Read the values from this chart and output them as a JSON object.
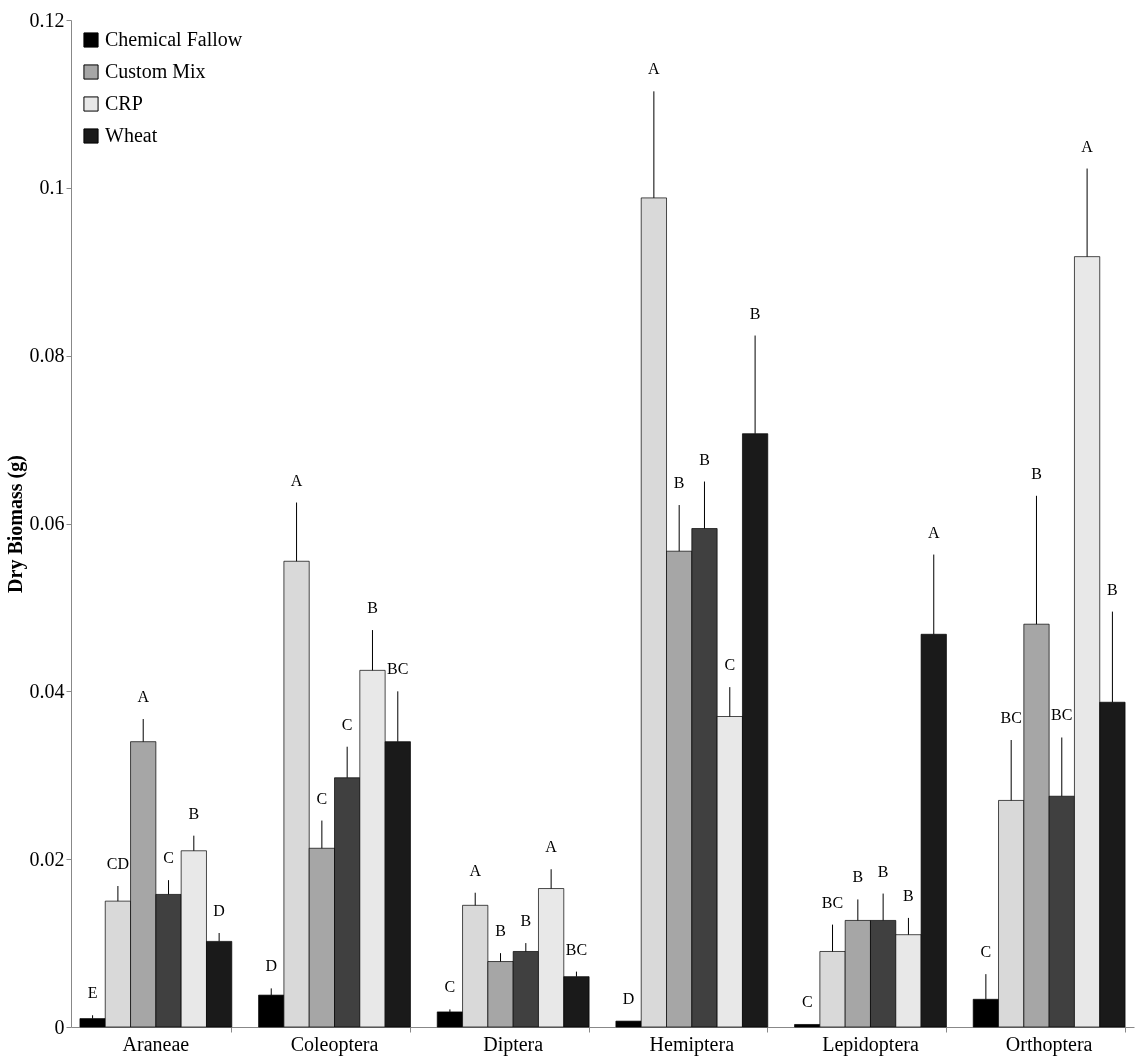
{
  "chart_data": {
    "type": "bar",
    "ylabel": "Dry Biomass (g)",
    "categories": [
      "Araneae",
      "Coleoptera",
      "Diptera",
      "Hemiptera",
      "Lepidoptera",
      "Orthoptera"
    ],
    "series": [
      {
        "name": "Chemical Fallow",
        "color": "#000000",
        "values": [
          0.001,
          0.0038,
          0.0018,
          0.0007,
          0.0003,
          0.0033
        ],
        "errors": [
          [
            0.001,
            0.0014
          ],
          [
            0.0038,
            0.0046
          ],
          [
            0.0018,
            0.0021
          ],
          null,
          null,
          [
            0.0033,
            0.0063
          ]
        ]
      },
      {
        "color": "#d9d9d9",
        "values": [
          0.015,
          0.0555,
          0.0145,
          0.0988,
          0.009,
          0.027
        ],
        "errors": [
          [
            0.015,
            0.0168
          ],
          [
            0.0555,
            0.0625
          ],
          [
            0.0145,
            0.016
          ],
          [
            0.0988,
            0.1115
          ],
          [
            0.009,
            0.0122
          ],
          [
            0.027,
            0.0342
          ]
        ]
      },
      {
        "name": "Custom Mix",
        "color": "#a6a6a6",
        "values": [
          0.034,
          0.0213,
          0.0078,
          0.0567,
          0.0127,
          0.048
        ],
        "errors": [
          [
            0.034,
            0.0367
          ],
          [
            0.0213,
            0.0246
          ],
          [
            0.0078,
            0.0088
          ],
          [
            0.0567,
            0.0622
          ],
          [
            0.0127,
            0.0152
          ],
          [
            0.048,
            0.0633
          ]
        ]
      },
      {
        "color": "#404040",
        "values": [
          0.0158,
          0.0297,
          0.009,
          0.0594,
          0.0127,
          0.0275
        ],
        "errors": [
          [
            0.0158,
            0.0175
          ],
          [
            0.0297,
            0.0334
          ],
          [
            0.009,
            0.01
          ],
          [
            0.0594,
            0.065
          ],
          [
            0.0127,
            0.0159
          ],
          [
            0.0275,
            0.0345
          ]
        ]
      },
      {
        "name": "CRP",
        "color": "#e8e8e8",
        "values": [
          0.021,
          0.0425,
          0.0165,
          0.037,
          0.011,
          0.0918
        ],
        "errors": [
          [
            0.021,
            0.0228
          ],
          [
            0.0425,
            0.0473
          ],
          [
            0.0165,
            0.0188
          ],
          [
            0.037,
            0.0405
          ],
          [
            0.011,
            0.013
          ],
          [
            0.0918,
            0.1023
          ]
        ]
      },
      {
        "name": "Wheat",
        "color": "#1a1a1a",
        "values": [
          0.0102,
          0.034,
          0.006,
          0.0707,
          0.0468,
          0.0387
        ],
        "errors": [
          [
            0.0102,
            0.0112
          ],
          [
            0.034,
            0.04
          ],
          [
            0.006,
            0.0066
          ],
          [
            0.0707,
            0.0824
          ],
          [
            0.0468,
            0.0563
          ],
          [
            0.0387,
            0.0495
          ]
        ]
      }
    ],
    "annotations": [
      "E",
      "CD",
      "A",
      "C",
      "B",
      "D",
      "D",
      "A",
      "C",
      "C",
      "B",
      "BC",
      "C",
      "A",
      "B",
      "B",
      "A",
      "BC",
      "D",
      "A",
      "B",
      "B",
      "C",
      "B",
      "C",
      "BC",
      "B",
      "B",
      "B",
      "A",
      "C",
      "BC",
      "B",
      "BC",
      "A",
      "B"
    ],
    "ylim": [
      0,
      0.12
    ],
    "yticks": [
      0,
      0.02,
      0.04,
      0.06,
      0.08,
      0.1,
      0.12
    ],
    "grid": false,
    "legend": "top left"
  }
}
